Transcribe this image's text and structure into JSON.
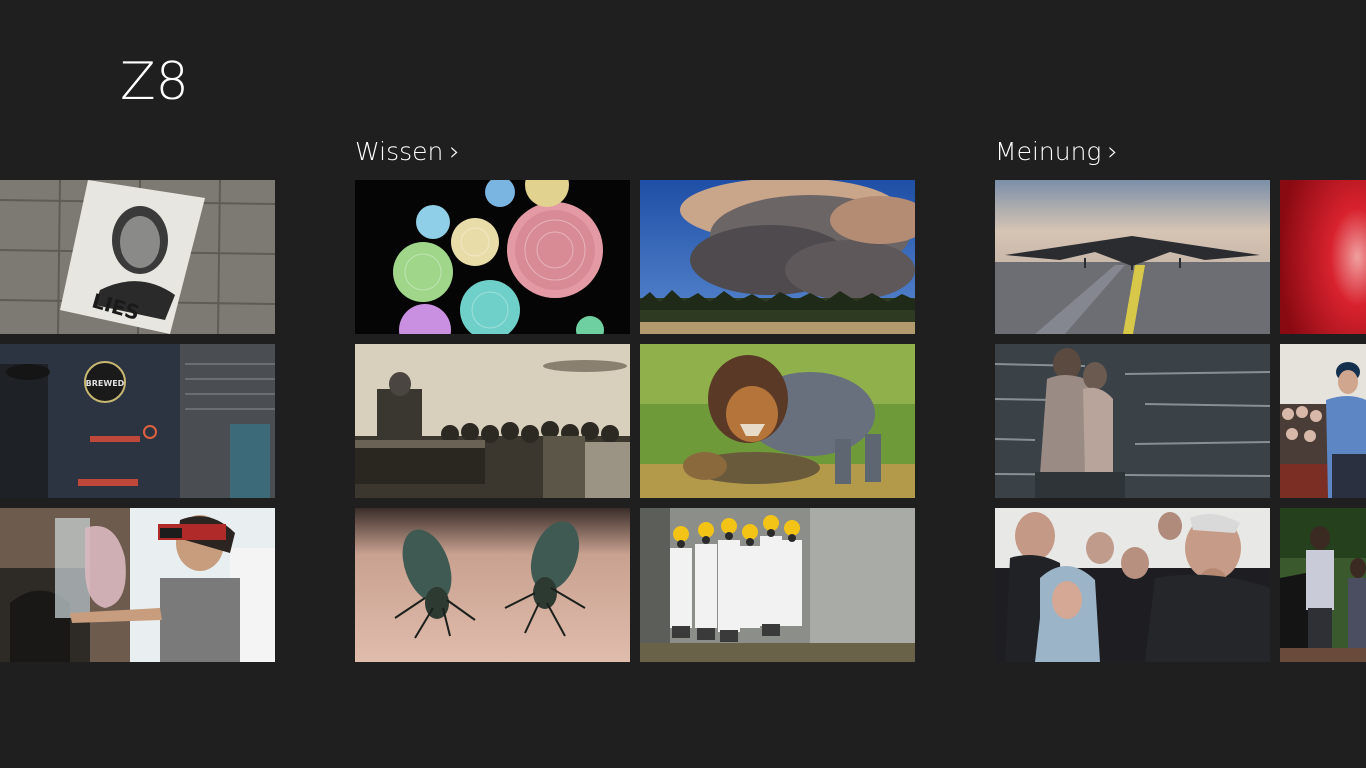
{
  "app": {
    "title": "Z8"
  },
  "groups": [
    {
      "label": "Wissen",
      "chevron": "›"
    },
    {
      "label": "Meinung",
      "chevron": "›"
    }
  ],
  "tiles": {
    "left_column": [
      {
        "caption": "LIES"
      },
      {
        "caption": "BREWED"
      },
      {
        "caption": ""
      }
    ]
  },
  "icons": {
    "chevron": "chevron-right-icon"
  },
  "colors": {
    "background": "#1f1f1f",
    "text": "#ffffff"
  }
}
